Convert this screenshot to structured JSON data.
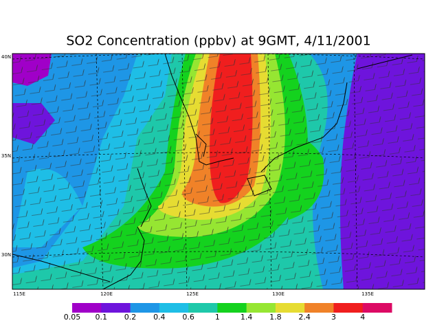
{
  "chart_data": {
    "type": "filled-contour-map",
    "title": "SO2 Concentration (ppbv) at 9GMT, 4/11/2001",
    "lat_labels": [
      "40N",
      "35N",
      "30N"
    ],
    "lon_labels": [
      "115E",
      "120E",
      "125E",
      "130E",
      "135E"
    ],
    "levels": [
      0.05,
      0.1,
      0.2,
      0.4,
      0.6,
      1,
      1.4,
      1.8,
      2.4,
      3,
      4
    ],
    "colors": [
      "#a000c8",
      "#6e14dc",
      "#1e96e6",
      "#1ebee6",
      "#1ec8aa",
      "#14d21e",
      "#96e632",
      "#e6dc32",
      "#f08228",
      "#f01e1e",
      "#dc0a64"
    ]
  }
}
